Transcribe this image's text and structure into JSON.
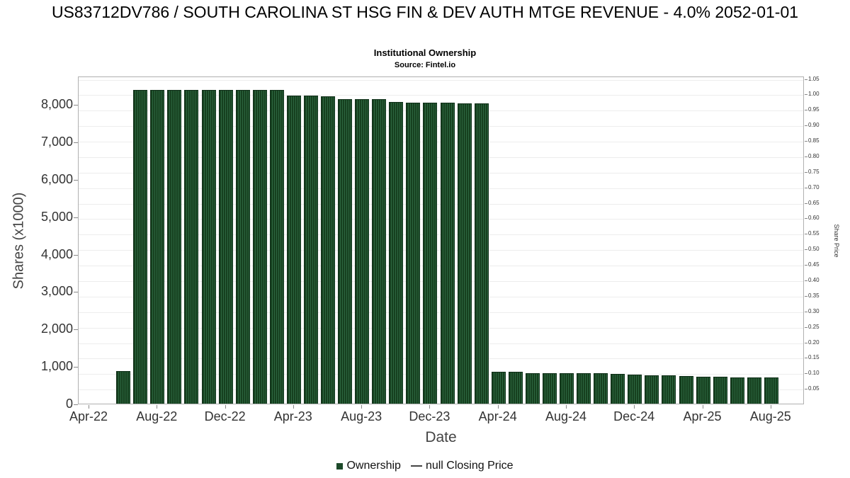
{
  "colors": {
    "bar": "#1d4a2a",
    "bar_stripe_dark": "#16401f",
    "bar_stripe_light": "#2d6640",
    "legend_dash": "#444444",
    "grid": "#ededed",
    "axis_border": "#b0b0b0",
    "tick": "#888888"
  },
  "chart_data": {
    "type": "bar",
    "title": "US83712DV786 / SOUTH CAROLINA ST HSG FIN & DEV AUTH MTGE REVENUE - 4.0% 2052-01-01",
    "subtitle": "Institutional Ownership",
    "source": "Source: Fintel.io",
    "xlabel": "Date",
    "ylabel_left": "Shares (x1000)",
    "ylabel_right": "Share Price",
    "left_ylim": [
      0,
      8760
    ],
    "right_ylim": [
      0,
      1.058
    ],
    "grid": "horizontal-faint",
    "legend_position": "bottom-center",
    "left_ticks": [
      {
        "value": 0,
        "label": "0"
      },
      {
        "value": 1000,
        "label": "1,000"
      },
      {
        "value": 2000,
        "label": "2,000"
      },
      {
        "value": 3000,
        "label": "3,000"
      },
      {
        "value": 4000,
        "label": "4,000"
      },
      {
        "value": 5000,
        "label": "5,000"
      },
      {
        "value": 6000,
        "label": "6,000"
      },
      {
        "value": 7000,
        "label": "7,000"
      },
      {
        "value": 8000,
        "label": "8,000"
      }
    ],
    "right_ticks": [
      {
        "value": 0.05,
        "label": "0.05"
      },
      {
        "value": 0.1,
        "label": "0.10"
      },
      {
        "value": 0.15,
        "label": "0.15"
      },
      {
        "value": 0.2,
        "label": "0.20"
      },
      {
        "value": 0.25,
        "label": "0.25"
      },
      {
        "value": 0.3,
        "label": "0.30"
      },
      {
        "value": 0.35,
        "label": "0.35"
      },
      {
        "value": 0.4,
        "label": "0.40"
      },
      {
        "value": 0.45,
        "label": "0.45"
      },
      {
        "value": 0.5,
        "label": "0.50"
      },
      {
        "value": 0.55,
        "label": "0.55"
      },
      {
        "value": 0.6,
        "label": "0.60"
      },
      {
        "value": 0.65,
        "label": "0.65"
      },
      {
        "value": 0.7,
        "label": "0.70"
      },
      {
        "value": 0.75,
        "label": "0.75"
      },
      {
        "value": 0.8,
        "label": "0.80"
      },
      {
        "value": 0.85,
        "label": "0.85"
      },
      {
        "value": 0.9,
        "label": "0.90"
      },
      {
        "value": 0.95,
        "label": "0.95"
      },
      {
        "value": 1.0,
        "label": "1.00"
      },
      {
        "value": 1.05,
        "label": "1.05"
      }
    ],
    "x_ticks": [
      {
        "m": 0,
        "label": "Apr-22"
      },
      {
        "m": 4,
        "label": "Aug-22"
      },
      {
        "m": 8,
        "label": "Dec-22"
      },
      {
        "m": 12,
        "label": "Apr-23"
      },
      {
        "m": 16,
        "label": "Aug-23"
      },
      {
        "m": 20,
        "label": "Dec-23"
      },
      {
        "m": 24,
        "label": "Apr-24"
      },
      {
        "m": 28,
        "label": "Aug-24"
      },
      {
        "m": 32,
        "label": "Dec-24"
      },
      {
        "m": 36,
        "label": "Apr-25"
      },
      {
        "m": 40,
        "label": "Aug-25"
      }
    ],
    "series": [
      {
        "name": "Ownership",
        "unit": "shares x1000",
        "points": [
          {
            "m": 2,
            "month": "Jun-22",
            "value": 870
          },
          {
            "m": 3,
            "month": "Jul-22",
            "value": 8380
          },
          {
            "m": 4,
            "month": "Aug-22",
            "value": 8380
          },
          {
            "m": 5,
            "month": "Sep-22",
            "value": 8380
          },
          {
            "m": 6,
            "month": "Oct-22",
            "value": 8380
          },
          {
            "m": 7,
            "month": "Nov-22",
            "value": 8380
          },
          {
            "m": 8,
            "month": "Dec-22",
            "value": 8380
          },
          {
            "m": 9,
            "month": "Jan-23",
            "value": 8380
          },
          {
            "m": 10,
            "month": "Feb-23",
            "value": 8380
          },
          {
            "m": 11,
            "month": "Mar-23",
            "value": 8380
          },
          {
            "m": 12,
            "month": "Apr-23",
            "value": 8230
          },
          {
            "m": 13,
            "month": "May-23",
            "value": 8240
          },
          {
            "m": 14,
            "month": "Jun-23",
            "value": 8210
          },
          {
            "m": 15,
            "month": "Jul-23",
            "value": 8140
          },
          {
            "m": 16,
            "month": "Aug-23",
            "value": 8130
          },
          {
            "m": 17,
            "month": "Sep-23",
            "value": 8130
          },
          {
            "m": 18,
            "month": "Oct-23",
            "value": 8060
          },
          {
            "m": 19,
            "month": "Nov-23",
            "value": 8050
          },
          {
            "m": 20,
            "month": "Dec-23",
            "value": 8040
          },
          {
            "m": 21,
            "month": "Jan-24",
            "value": 8040
          },
          {
            "m": 22,
            "month": "Feb-24",
            "value": 8030
          },
          {
            "m": 23,
            "month": "Mar-24",
            "value": 8030
          },
          {
            "m": 24,
            "month": "Apr-24",
            "value": 850
          },
          {
            "m": 25,
            "month": "May-24",
            "value": 850
          },
          {
            "m": 26,
            "month": "Jun-24",
            "value": 820
          },
          {
            "m": 27,
            "month": "Jul-24",
            "value": 810
          },
          {
            "m": 28,
            "month": "Aug-24",
            "value": 810
          },
          {
            "m": 29,
            "month": "Sep-24",
            "value": 810
          },
          {
            "m": 30,
            "month": "Oct-24",
            "value": 810
          },
          {
            "m": 31,
            "month": "Nov-24",
            "value": 800
          },
          {
            "m": 32,
            "month": "Dec-24",
            "value": 770
          },
          {
            "m": 33,
            "month": "Jan-25",
            "value": 765
          },
          {
            "m": 34,
            "month": "Feb-25",
            "value": 760
          },
          {
            "m": 35,
            "month": "Mar-25",
            "value": 730
          },
          {
            "m": 36,
            "month": "Apr-25",
            "value": 725
          },
          {
            "m": 37,
            "month": "May-25",
            "value": 720
          },
          {
            "m": 38,
            "month": "Jun-25",
            "value": 705
          },
          {
            "m": 39,
            "month": "Jul-25",
            "value": 700
          },
          {
            "m": 40,
            "month": "Aug-25",
            "value": 695
          }
        ]
      }
    ],
    "legend": [
      {
        "label": "Ownership",
        "marker": "square",
        "color": "#1d4a2a"
      },
      {
        "label": "null Closing Price",
        "marker": "dash",
        "color": "#444444"
      }
    ]
  }
}
